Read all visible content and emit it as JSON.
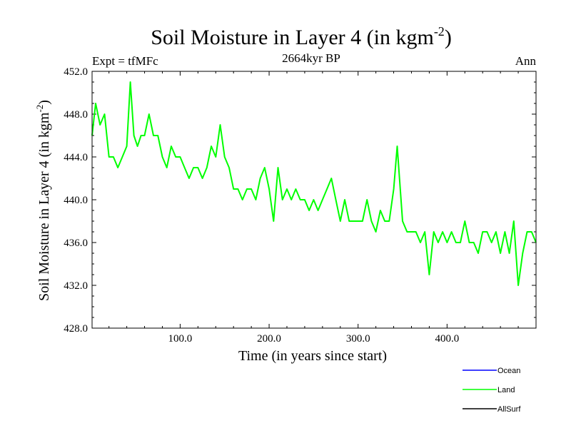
{
  "chart_data": {
    "type": "line",
    "title_main": "Soil Moisture in Layer 4 (in kgm",
    "title_sup": "-2",
    "title_close": ")",
    "subtitle": "2664kyr BP",
    "left_label": "Expt = tfMFc",
    "right_label": "Ann",
    "xlabel": "Time (in years since start)",
    "ylabel_main": "Soil Moisture in Layer 4 (in kgm",
    "ylabel_sup": "-2",
    "ylabel_close": ")",
    "xlim": [
      1,
      500
    ],
    "ylim": [
      428,
      452
    ],
    "x_ticks": [
      100,
      200,
      300,
      400
    ],
    "x_tick_labels": [
      "100.0",
      "200.0",
      "300.0",
      "400.0"
    ],
    "y_ticks": [
      428,
      432,
      436,
      440,
      444,
      448,
      452
    ],
    "y_tick_labels": [
      "428.0",
      "432.0",
      "436.0",
      "440.0",
      "444.0",
      "448.0",
      "452.0"
    ],
    "legend": [
      {
        "name": "Ocean",
        "color": "#0000ff"
      },
      {
        "name": "Land",
        "color": "#00ff00"
      },
      {
        "name": "AllSurf",
        "color": "#000000"
      }
    ],
    "series": [
      {
        "name": "Land",
        "color": "#00ff00",
        "x": [
          1,
          5,
          10,
          15,
          20,
          25,
          30,
          35,
          40,
          44,
          48,
          52,
          56,
          60,
          65,
          70,
          75,
          80,
          85,
          90,
          95,
          100,
          105,
          110,
          115,
          120,
          125,
          130,
          135,
          140,
          145,
          150,
          155,
          160,
          165,
          170,
          175,
          180,
          185,
          190,
          195,
          200,
          205,
          210,
          215,
          220,
          225,
          230,
          235,
          240,
          245,
          250,
          255,
          260,
          265,
          270,
          275,
          280,
          285,
          290,
          295,
          300,
          305,
          310,
          315,
          320,
          325,
          330,
          335,
          340,
          344,
          350,
          355,
          360,
          365,
          370,
          375,
          380,
          385,
          390,
          395,
          400,
          405,
          410,
          415,
          420,
          425,
          430,
          435,
          440,
          445,
          450,
          455,
          460,
          465,
          470,
          475,
          480,
          485,
          490,
          495,
          500
        ],
        "values": [
          446,
          449,
          447,
          448,
          444,
          444,
          443,
          444,
          445,
          451,
          446,
          445,
          446,
          446,
          448,
          446,
          446,
          444,
          443,
          445,
          444,
          444,
          443,
          442,
          443,
          443,
          442,
          443,
          445,
          444,
          447,
          444,
          443,
          441,
          441,
          440,
          441,
          441,
          440,
          442,
          443,
          441,
          438,
          443,
          440,
          441,
          440,
          441,
          440,
          440,
          439,
          440,
          439,
          440,
          441,
          442,
          440,
          438,
          440,
          438,
          438,
          438,
          438,
          440,
          438,
          437,
          439,
          438,
          438,
          441,
          445,
          438,
          437,
          437,
          437,
          436,
          437,
          433,
          437,
          436,
          437,
          436,
          437,
          436,
          436,
          438,
          436,
          436,
          435,
          437,
          437,
          436,
          437,
          435,
          437,
          435,
          438,
          432,
          435,
          437,
          437,
          436
        ]
      }
    ]
  }
}
